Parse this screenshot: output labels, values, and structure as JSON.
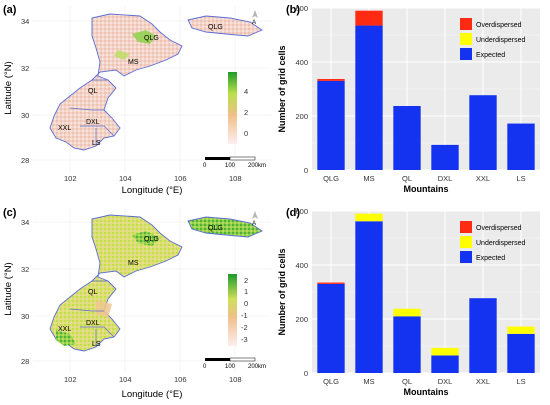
{
  "panels": [
    {
      "label": "(a)",
      "kind": "map",
      "xlabel": "Longitude (°E)",
      "ylabel": "Latitude (°N)",
      "xticks": [
        "102",
        "104",
        "106",
        "108"
      ],
      "yticks": [
        "34",
        "32",
        "30",
        "28"
      ],
      "colorbar_ticks": [
        "4",
        "2",
        "0"
      ],
      "colorbar_colors": [
        "#2ca02c",
        "#b8e04a",
        "#f2c38a",
        "#fbe6e6"
      ],
      "regions": [
        "QLG",
        "MS",
        "QL",
        "XXL",
        "DXL",
        "LS"
      ],
      "scalebar": {
        "labels": [
          "0",
          "100",
          "200km"
        ]
      }
    },
    {
      "label": "(c)",
      "kind": "map",
      "xlabel": "Longitude (°E)",
      "ylabel": "Latitude (°N)",
      "xticks": [
        "102",
        "104",
        "106",
        "108"
      ],
      "yticks": [
        "34",
        "32",
        "30",
        "28"
      ],
      "colorbar_ticks": [
        "2",
        "1",
        "0",
        "-1",
        "-2",
        "-3"
      ],
      "colorbar_colors": [
        "#2ca02c",
        "#c8e05a",
        "#f2c38a",
        "#fbe6e6"
      ],
      "regions": [
        "QLG",
        "MS",
        "QL",
        "XXL",
        "DXL",
        "LS"
      ],
      "scalebar": {
        "labels": [
          "0",
          "100",
          "200km"
        ]
      }
    }
  ],
  "chart_data": [
    {
      "label": "(b)",
      "type": "bar",
      "stacked": true,
      "categories": [
        "QLG",
        "MS",
        "QL",
        "DXL",
        "XXL",
        "LS"
      ],
      "series": [
        {
          "name": "Expected",
          "color": "#1433f0",
          "values": [
            330,
            535,
            237,
            93,
            277,
            172
          ]
        },
        {
          "name": "Underdispersed",
          "color": "#ffff00",
          "values": [
            0,
            0,
            0,
            0,
            0,
            0
          ]
        },
        {
          "name": "Overdispersed",
          "color": "#ff2a12",
          "values": [
            7,
            55,
            0,
            0,
            0,
            0
          ]
        }
      ],
      "xlabel": "Mountains",
      "ylabel": "Number of grid cells",
      "ylim": [
        0,
        600
      ],
      "yticks": [
        0,
        200,
        400,
        600
      ],
      "legend_order": [
        "Overdispersed",
        "Underdispersed",
        "Expected"
      ],
      "legend_position": "top-right",
      "grid": true
    },
    {
      "label": "(d)",
      "type": "bar",
      "stacked": true,
      "categories": [
        "QLG",
        "MS",
        "QL",
        "DXL",
        "XXL",
        "LS"
      ],
      "series": [
        {
          "name": "Expected",
          "color": "#1433f0",
          "values": [
            330,
            562,
            210,
            65,
            277,
            145
          ]
        },
        {
          "name": "Underdispersed",
          "color": "#ffff00",
          "values": [
            0,
            28,
            28,
            28,
            0,
            27
          ]
        },
        {
          "name": "Overdispersed",
          "color": "#ff2a12",
          "values": [
            5,
            0,
            0,
            0,
            0,
            0
          ]
        }
      ],
      "xlabel": "Mountains",
      "ylabel": "Number of grid cells",
      "ylim": [
        0,
        600
      ],
      "yticks": [
        0,
        200,
        400,
        600
      ],
      "legend_order": [
        "Overdispersed",
        "Underdispersed",
        "Expected"
      ],
      "legend_position": "top-right",
      "grid": true
    }
  ]
}
